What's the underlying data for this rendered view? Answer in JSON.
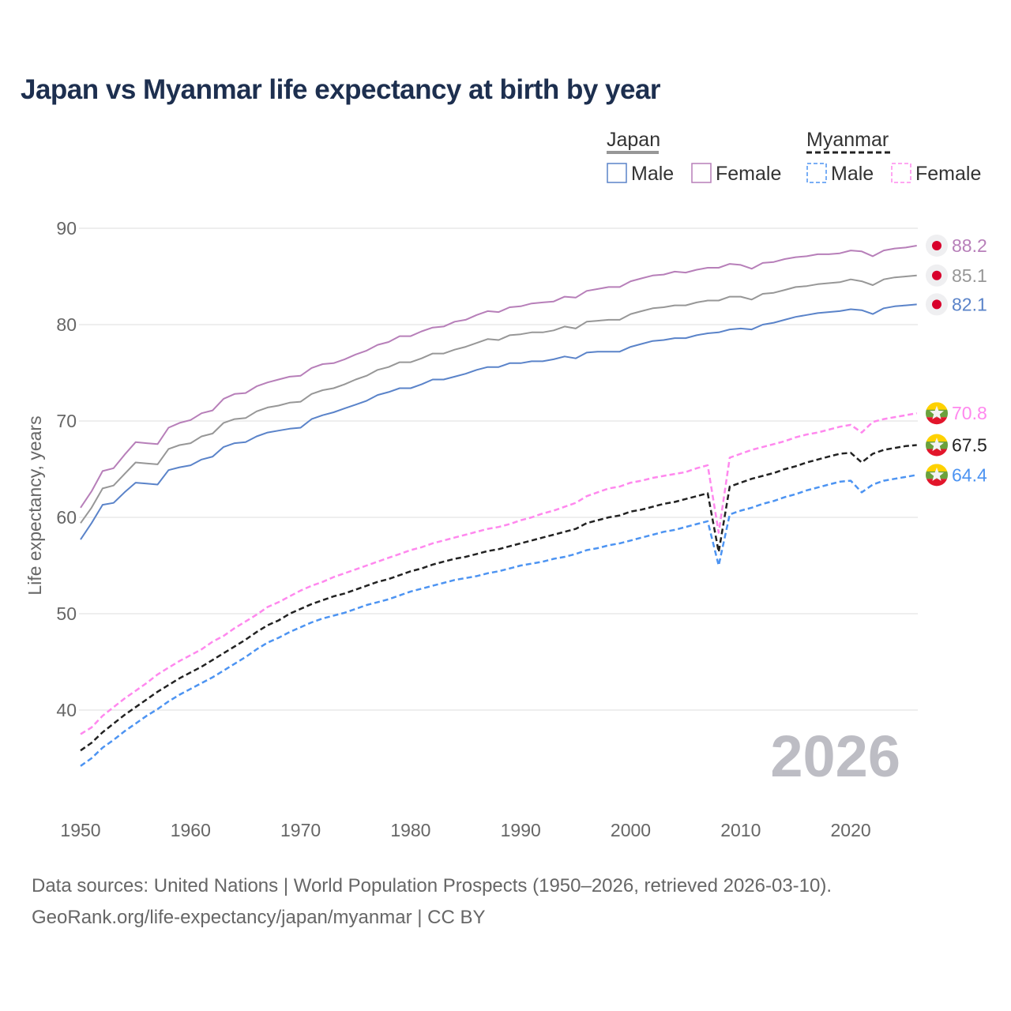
{
  "title": "Japan vs Myanmar life expectancy at birth by year",
  "source_line1": "Data sources: United Nations | World Population Prospects (1950–2026, retrieved 2026-03-10).",
  "source_line2": "GeoRank.org/life-expectancy/japan/myanmar | CC BY",
  "chart_data": {
    "type": "line",
    "title": "Japan vs Myanmar life expectancy at birth by year",
    "xlabel": "",
    "ylabel": "Life expectancy, years",
    "xlim": [
      1950,
      2026
    ],
    "ylim": [
      33,
      92
    ],
    "x_ticks": [
      "1950",
      "1960",
      "1970",
      "1980",
      "1990",
      "2000",
      "2010",
      "2020"
    ],
    "y_ticks": [
      "40",
      "50",
      "60",
      "70",
      "80",
      "90"
    ],
    "grid": true,
    "year_watermark": "2026",
    "legend": {
      "placement": "top-right",
      "groups": [
        {
          "label": "Japan",
          "items": [
            "Male",
            "Female"
          ]
        },
        {
          "label": "Myanmar",
          "items": [
            "Male",
            "Female"
          ]
        }
      ]
    },
    "x_start": 1950,
    "series": [
      {
        "name": "Japan Female",
        "country": "Japan",
        "color": "#b77fb9",
        "dashed": false,
        "end_label": "88.2",
        "flag": "japan-flag",
        "values": [
          61.0,
          62.7,
          64.8,
          65.1,
          66.5,
          67.8,
          67.7,
          67.6,
          69.3,
          69.8,
          70.1,
          70.8,
          71.1,
          72.3,
          72.8,
          72.9,
          73.6,
          74.0,
          74.3,
          74.6,
          74.7,
          75.5,
          75.9,
          76.0,
          76.4,
          76.9,
          77.3,
          77.9,
          78.2,
          78.8,
          78.8,
          79.3,
          79.7,
          79.8,
          80.3,
          80.5,
          81.0,
          81.4,
          81.3,
          81.8,
          81.9,
          82.2,
          82.3,
          82.4,
          82.9,
          82.8,
          83.5,
          83.7,
          83.9,
          83.9,
          84.5,
          84.8,
          85.1,
          85.2,
          85.5,
          85.4,
          85.7,
          85.9,
          85.9,
          86.3,
          86.2,
          85.8,
          86.4,
          86.5,
          86.8,
          87.0,
          87.1,
          87.3,
          87.3,
          87.4,
          87.7,
          87.6,
          87.1,
          87.7,
          87.9,
          88.0,
          88.2
        ]
      },
      {
        "name": "Japan Total",
        "country": "Japan",
        "color": "#979797",
        "dashed": false,
        "end_label": "85.1",
        "flag": "japan-flag",
        "values": [
          59.4,
          61.0,
          63.0,
          63.3,
          64.5,
          65.7,
          65.6,
          65.5,
          67.1,
          67.5,
          67.7,
          68.4,
          68.7,
          69.8,
          70.2,
          70.3,
          71.0,
          71.4,
          71.6,
          71.9,
          72.0,
          72.8,
          73.2,
          73.4,
          73.8,
          74.3,
          74.7,
          75.3,
          75.6,
          76.1,
          76.1,
          76.5,
          77.0,
          77.0,
          77.4,
          77.7,
          78.1,
          78.5,
          78.4,
          78.9,
          79.0,
          79.2,
          79.2,
          79.4,
          79.8,
          79.6,
          80.3,
          80.4,
          80.5,
          80.5,
          81.1,
          81.4,
          81.7,
          81.8,
          82.0,
          82.0,
          82.3,
          82.5,
          82.5,
          82.9,
          82.9,
          82.6,
          83.2,
          83.3,
          83.6,
          83.9,
          84.0,
          84.2,
          84.3,
          84.4,
          84.7,
          84.5,
          84.1,
          84.7,
          84.9,
          85.0,
          85.1
        ]
      },
      {
        "name": "Japan Male",
        "country": "Japan",
        "color": "#5a83c9",
        "dashed": false,
        "end_label": "82.1",
        "flag": "japan-flag",
        "values": [
          57.7,
          59.4,
          61.3,
          61.5,
          62.6,
          63.6,
          63.5,
          63.4,
          64.9,
          65.2,
          65.4,
          66.0,
          66.3,
          67.3,
          67.7,
          67.8,
          68.4,
          68.8,
          69.0,
          69.2,
          69.3,
          70.2,
          70.6,
          70.9,
          71.3,
          71.7,
          72.1,
          72.7,
          73.0,
          73.4,
          73.4,
          73.8,
          74.3,
          74.3,
          74.6,
          74.9,
          75.3,
          75.6,
          75.6,
          76.0,
          76.0,
          76.2,
          76.2,
          76.4,
          76.7,
          76.5,
          77.1,
          77.2,
          77.2,
          77.2,
          77.7,
          78.0,
          78.3,
          78.4,
          78.6,
          78.6,
          78.9,
          79.1,
          79.2,
          79.5,
          79.6,
          79.5,
          80.0,
          80.2,
          80.5,
          80.8,
          81.0,
          81.2,
          81.3,
          81.4,
          81.6,
          81.5,
          81.1,
          81.7,
          81.9,
          82.0,
          82.1
        ]
      },
      {
        "name": "Myanmar Female",
        "country": "Myanmar",
        "color": "#ff88ee",
        "dashed": true,
        "end_label": "70.8",
        "flag": "myanmar-flag",
        "values": [
          37.5,
          38.2,
          39.4,
          40.3,
          41.2,
          42.0,
          42.8,
          43.7,
          44.4,
          45.1,
          45.7,
          46.3,
          47.1,
          47.7,
          48.5,
          49.2,
          49.9,
          50.7,
          51.2,
          51.8,
          52.4,
          52.9,
          53.3,
          53.8,
          54.2,
          54.6,
          55.0,
          55.4,
          55.8,
          56.2,
          56.6,
          56.9,
          57.3,
          57.6,
          57.9,
          58.2,
          58.5,
          58.8,
          59.0,
          59.3,
          59.7,
          60.0,
          60.4,
          60.7,
          61.1,
          61.5,
          62.2,
          62.6,
          63.0,
          63.2,
          63.6,
          63.8,
          64.1,
          64.3,
          64.5,
          64.7,
          65.1,
          65.4,
          58.4,
          66.2,
          66.6,
          67.0,
          67.3,
          67.6,
          67.9,
          68.3,
          68.6,
          68.8,
          69.1,
          69.4,
          69.6,
          68.8,
          69.9,
          70.2,
          70.4,
          70.6,
          70.8
        ]
      },
      {
        "name": "Myanmar Total",
        "country": "Myanmar",
        "color": "#222222",
        "dashed": true,
        "end_label": "67.5",
        "flag": "myanmar-flag",
        "values": [
          35.8,
          36.6,
          37.7,
          38.6,
          39.5,
          40.3,
          41.1,
          41.9,
          42.6,
          43.3,
          43.9,
          44.5,
          45.2,
          45.9,
          46.6,
          47.3,
          48.1,
          48.8,
          49.3,
          50.0,
          50.5,
          51.0,
          51.4,
          51.8,
          52.1,
          52.5,
          52.9,
          53.3,
          53.6,
          54.0,
          54.4,
          54.7,
          55.1,
          55.4,
          55.7,
          55.9,
          56.2,
          56.5,
          56.7,
          57.0,
          57.3,
          57.6,
          57.9,
          58.2,
          58.5,
          58.8,
          59.4,
          59.7,
          60.0,
          60.2,
          60.6,
          60.8,
          61.1,
          61.4,
          61.6,
          61.9,
          62.2,
          62.5,
          56.4,
          63.2,
          63.6,
          64.0,
          64.3,
          64.6,
          65.0,
          65.3,
          65.7,
          66.0,
          66.3,
          66.6,
          66.7,
          65.7,
          66.6,
          67.0,
          67.2,
          67.4,
          67.5
        ]
      },
      {
        "name": "Myanmar Male",
        "country": "Myanmar",
        "color": "#4d94f2",
        "dashed": true,
        "end_label": "64.4",
        "flag": "myanmar-flag",
        "values": [
          34.2,
          35.0,
          36.1,
          36.9,
          37.8,
          38.6,
          39.4,
          40.1,
          40.9,
          41.6,
          42.2,
          42.8,
          43.4,
          44.1,
          44.8,
          45.5,
          46.3,
          47.0,
          47.5,
          48.1,
          48.6,
          49.1,
          49.5,
          49.8,
          50.1,
          50.5,
          50.9,
          51.2,
          51.5,
          51.9,
          52.3,
          52.6,
          52.9,
          53.2,
          53.5,
          53.7,
          53.9,
          54.2,
          54.4,
          54.7,
          55.0,
          55.2,
          55.4,
          55.7,
          55.9,
          56.2,
          56.6,
          56.8,
          57.1,
          57.3,
          57.6,
          57.9,
          58.2,
          58.5,
          58.7,
          59.0,
          59.3,
          59.6,
          55.0,
          60.3,
          60.7,
          61.0,
          61.4,
          61.7,
          62.1,
          62.4,
          62.8,
          63.1,
          63.4,
          63.7,
          63.8,
          62.6,
          63.4,
          63.8,
          64.0,
          64.2,
          64.4
        ]
      }
    ]
  }
}
